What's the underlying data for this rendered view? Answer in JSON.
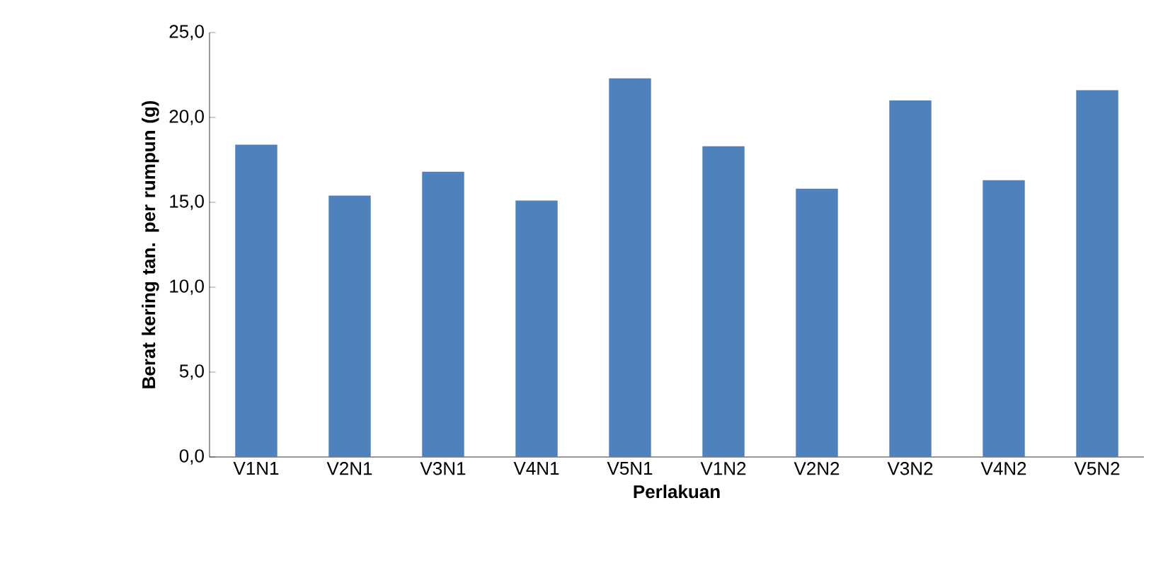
{
  "chart_data": {
    "type": "bar",
    "xlabel": "Perlakuan",
    "ylabel": "Berat kering tan. per rumpun (g)",
    "categories": [
      "V1N1",
      "V2N1",
      "V3N1",
      "V4N1",
      "V5N1",
      "V1N2",
      "V2N2",
      "V3N2",
      "V4N2",
      "V5N2"
    ],
    "values": [
      18.4,
      15.4,
      16.8,
      15.1,
      22.3,
      18.3,
      15.8,
      21.0,
      16.3,
      21.6
    ],
    "color": "#4f81bd",
    "ylim": [
      0,
      25
    ],
    "yticks": [
      {
        "value": 0,
        "label": "0,0"
      },
      {
        "value": 5,
        "label": "5,0"
      },
      {
        "value": 10,
        "label": "10,0"
      },
      {
        "value": 15,
        "label": "15,0"
      },
      {
        "value": 20,
        "label": "20,0"
      },
      {
        "value": 25,
        "label": "25,0"
      }
    ],
    "grid": false
  }
}
